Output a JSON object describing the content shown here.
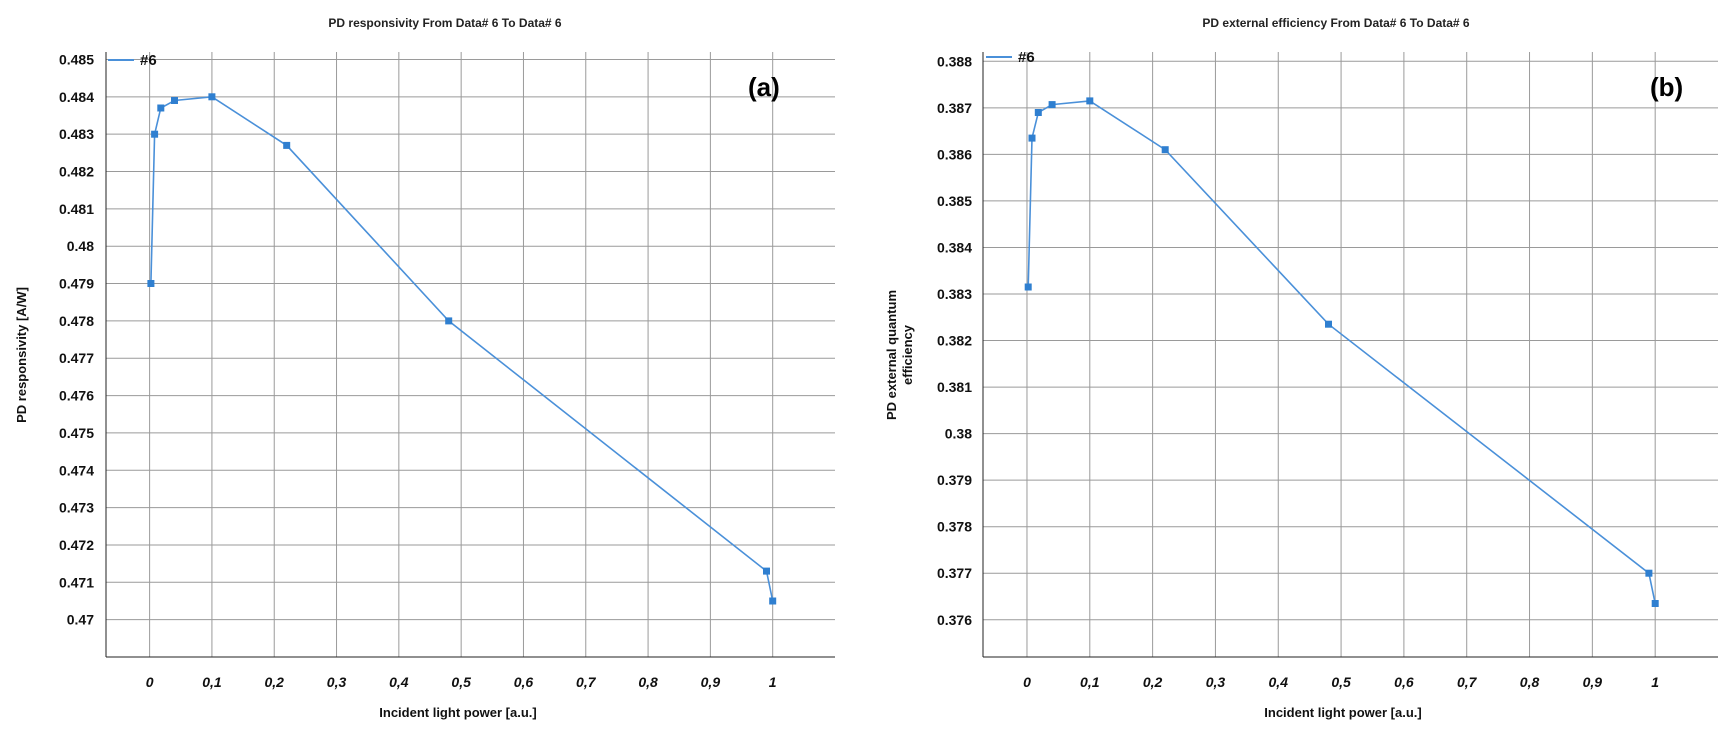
{
  "chart_data": [
    {
      "type": "line",
      "title": "PD responsivity From Data# 6 To Data# 6",
      "xlabel": "Incident light power [a.u.]",
      "ylabel": "PD responsivity [A/W]",
      "panel_label": "(a)",
      "xlim": [
        -0.07,
        1.1
      ],
      "ylim": [
        0.469,
        0.4852
      ],
      "x_ticks": [
        "0",
        "0,1",
        "0,2",
        "0,3",
        "0,4",
        "0,5",
        "0,6",
        "0,7",
        "0,8",
        "0,9",
        "1"
      ],
      "y_ticks": [
        "0.47",
        "0.471",
        "0.472",
        "0.473",
        "0.474",
        "0.475",
        "0.476",
        "0.477",
        "0.478",
        "0.479",
        "0.48",
        "0.481",
        "0.482",
        "0.483",
        "0.484",
        "0.485"
      ],
      "grid": true,
      "legend": "top-left",
      "series": [
        {
          "name": "#6",
          "color": "#4a90d9",
          "x": [
            0.002,
            0.008,
            0.018,
            0.04,
            0.1,
            0.22,
            0.48,
            0.99,
            1.0
          ],
          "y": [
            0.479,
            0.483,
            0.4837,
            0.4839,
            0.484,
            0.4827,
            0.478,
            0.4713,
            0.4705
          ]
        }
      ]
    },
    {
      "type": "line",
      "title": "PD external efficiency From Data# 6 To Data# 6",
      "xlabel": "Incident light power [a.u.]",
      "ylabel": "PD external quantum efficiency",
      "panel_label": "(b)",
      "xlim": [
        -0.07,
        1.1
      ],
      "ylim": [
        0.3752,
        0.3882
      ],
      "x_ticks": [
        "0",
        "0,1",
        "0,2",
        "0,3",
        "0,4",
        "0,5",
        "0,6",
        "0,7",
        "0,8",
        "0,9",
        "1"
      ],
      "y_ticks": [
        "0.376",
        "0.377",
        "0.378",
        "0.379",
        "0.38",
        "0.381",
        "0.382",
        "0.383",
        "0.384",
        "0.385",
        "0.386",
        "0.387",
        "0.388"
      ],
      "grid": true,
      "legend": "top-left",
      "series": [
        {
          "name": "#6",
          "color": "#4a90d9",
          "x": [
            0.002,
            0.008,
            0.018,
            0.04,
            0.1,
            0.22,
            0.48,
            0.99,
            1.0
          ],
          "y": [
            0.38315,
            0.38635,
            0.3869,
            0.38707,
            0.38715,
            0.3861,
            0.38235,
            0.377,
            0.37635
          ]
        }
      ]
    }
  ]
}
